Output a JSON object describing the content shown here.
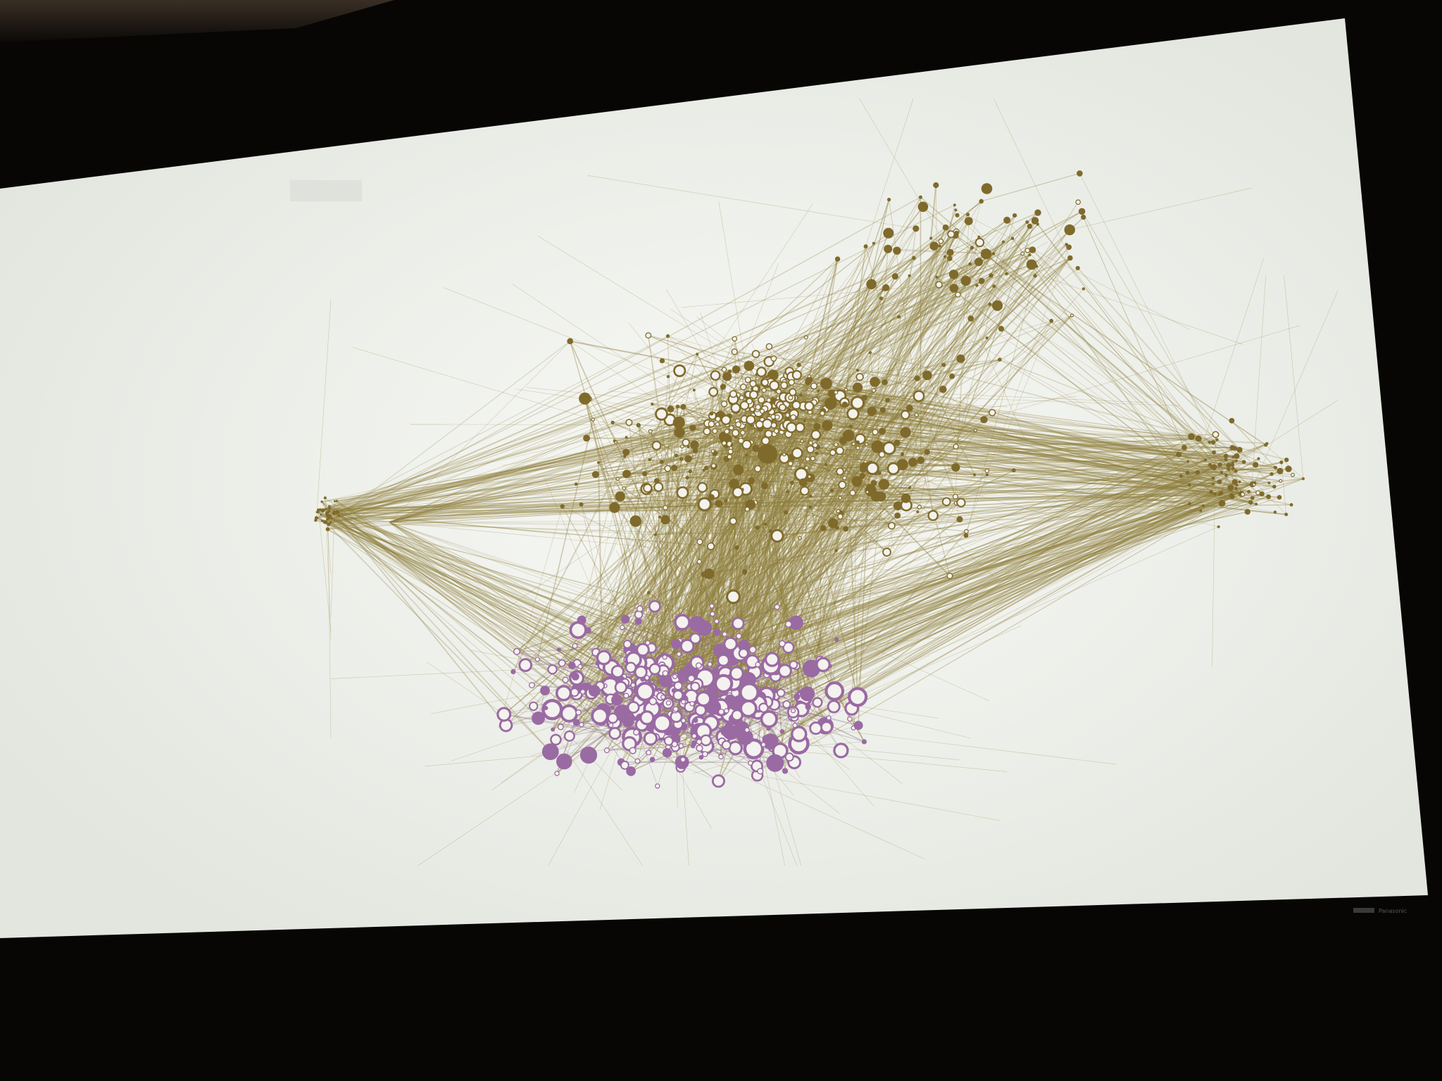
{
  "scene": {
    "kind": "photo-of-projection-screen",
    "screen_content": "network-graph-visualization",
    "colors": {
      "room_top": "#3a2f25",
      "room_dark": "#070605",
      "screen_fill": "#e9ebe6",
      "screen_glow": "#f6f7f4",
      "edge_gold": "#8f7f3c",
      "edge_purple": "#8a6f8c",
      "node_gold": "#7f6a2b",
      "node_purple": "#9a6aa3",
      "node_hollow": "#f4f2ee"
    }
  },
  "screen_corner_badge": {
    "icon": "projector-logo-icon",
    "text": "Panasonic"
  }
}
